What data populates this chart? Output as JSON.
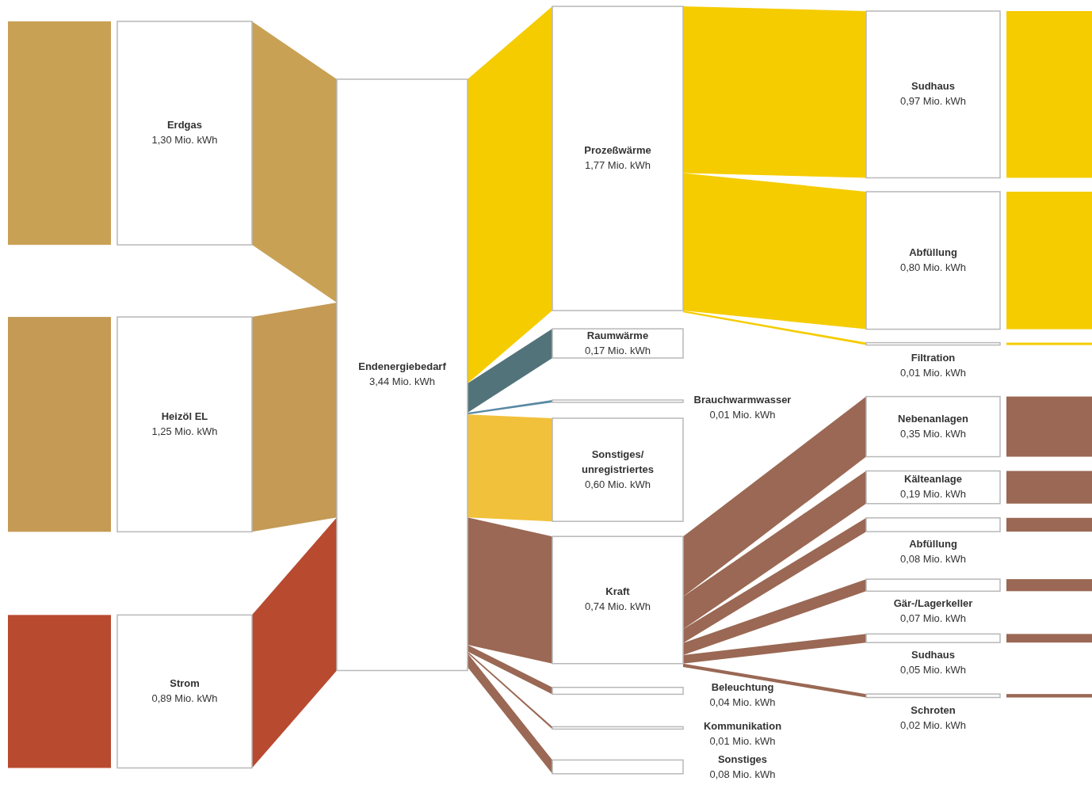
{
  "chart_data": {
    "type": "other",
    "categories": [
      "Erdgas",
      "Heizöl EL",
      "Strom",
      "Endenergiebedarf",
      "Prozeßwärme",
      "Raumwärme",
      "Brauchwarmwasser",
      "Sonstiges/ unregistriertes",
      "Kraft",
      "Beleuchtung",
      "Kommunikation",
      "Sonstiges",
      "Sudhaus",
      "Abfüllung",
      "Filtration",
      "Nebenanlagen",
      "Kälteanlage",
      "Abfüllung",
      "Gär-/Lagerkeller",
      "Sudhaus",
      "Schroten"
    ],
    "values": [
      1.3,
      1.25,
      0.89,
      3.44,
      1.77,
      0.17,
      0.01,
      0.6,
      0.74,
      0.04,
      0.01,
      0.08,
      0.97,
      0.8,
      0.01,
      0.35,
      0.19,
      0.08,
      0.07,
      0.05,
      0.02
    ],
    "value_labels": [
      "1,30 Mio. kWh",
      "1,25 Mio. kWh",
      "0,89 Mio. kWh",
      "3,44 Mio. kWh",
      "1,77 Mio. kWh",
      "0,17 Mio. kWh",
      "0,01 Mio. kWh",
      "0,60 Mio. kWh",
      "0,74 Mio. kWh",
      "0,04 Mio. kWh",
      "0,01 Mio. kWh",
      "0,08 Mio. kWh",
      "0,97 Mio. kWh",
      "0,80 Mio. kWh",
      "0,01 Mio. kWh",
      "0,35 Mio. kWh",
      "0,19 Mio. kWh",
      "0,08 Mio. kWh",
      "0,07 Mio. kWh",
      "0,05 Mio. kWh",
      "0,02 Mio. kWh"
    ],
    "colors": [
      "#c9a155",
      "#c49a55",
      "#b84a30",
      null,
      "#f5cc00",
      "#52737a",
      "#5a8aa5",
      "#f2c13b",
      "#9a6854",
      "#9a6854",
      "#9a6854",
      "#9a6854",
      "#f5cc00",
      "#f5cc00",
      "#f5cc00",
      "#9a6854",
      "#9a6854",
      "#9a6854",
      "#9a6854",
      "#9a6854",
      "#9a6854"
    ]
  }
}
